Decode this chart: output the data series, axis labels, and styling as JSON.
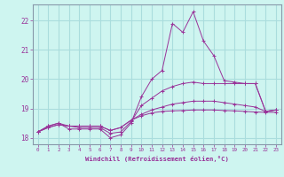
{
  "xlabel": "Windchill (Refroidissement éolien,°C)",
  "background_color": "#cef5f0",
  "grid_color": "#aadddd",
  "line_color": "#993399",
  "spine_color": "#8899aa",
  "xlim": [
    -0.5,
    23.5
  ],
  "ylim": [
    17.78,
    22.55
  ],
  "yticks": [
    18,
    19,
    20,
    21,
    22
  ],
  "xticks": [
    0,
    1,
    2,
    3,
    4,
    5,
    6,
    7,
    8,
    9,
    10,
    11,
    12,
    13,
    14,
    15,
    16,
    17,
    18,
    19,
    20,
    21,
    22,
    23
  ],
  "series": [
    [
      18.2,
      18.4,
      18.5,
      18.3,
      18.3,
      18.3,
      18.3,
      18.0,
      18.1,
      18.5,
      19.4,
      20.0,
      20.3,
      21.9,
      21.6,
      22.3,
      21.3,
      20.8,
      19.95,
      19.9,
      19.85,
      19.85,
      18.9,
      18.95
    ],
    [
      18.2,
      18.4,
      18.5,
      18.4,
      18.35,
      18.35,
      18.35,
      18.15,
      18.2,
      18.55,
      19.1,
      19.35,
      19.6,
      19.75,
      19.85,
      19.9,
      19.85,
      19.85,
      19.85,
      19.85,
      19.85,
      19.85,
      18.9,
      18.95
    ],
    [
      18.2,
      18.35,
      18.45,
      18.4,
      18.4,
      18.4,
      18.4,
      18.25,
      18.35,
      18.6,
      18.8,
      18.95,
      19.05,
      19.15,
      19.2,
      19.25,
      19.25,
      19.25,
      19.2,
      19.15,
      19.1,
      19.05,
      18.9,
      18.95
    ],
    [
      18.2,
      18.35,
      18.45,
      18.4,
      18.4,
      18.4,
      18.4,
      18.25,
      18.35,
      18.6,
      18.75,
      18.85,
      18.9,
      18.92,
      18.93,
      18.95,
      18.95,
      18.95,
      18.93,
      18.92,
      18.9,
      18.88,
      18.87,
      18.87
    ]
  ]
}
